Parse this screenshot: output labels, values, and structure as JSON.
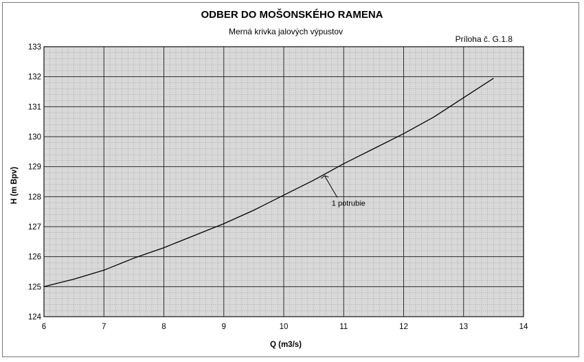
{
  "chart_data": {
    "type": "line",
    "title": "ODBER DO MOŠONSKÉHO RAMENA",
    "subtitle": "Merná krivka jalových výpustov",
    "annex_label": "Príloha č. G.1.8",
    "xlabel": "Q (m3/s)",
    "ylabel": "H (m Bpv)",
    "xlim": [
      6,
      14
    ],
    "ylim": [
      124,
      133
    ],
    "x_ticks": [
      "6",
      "7",
      "8",
      "9",
      "10",
      "11",
      "12",
      "13",
      "14"
    ],
    "y_ticks": [
      "124",
      "125",
      "126",
      "127",
      "128",
      "129",
      "130",
      "131",
      "132",
      "133"
    ],
    "grid": true,
    "series": [
      {
        "name": "1 potrubie",
        "x": [
          6.0,
          6.5,
          7.0,
          7.5,
          8.0,
          8.5,
          9.0,
          9.5,
          10.0,
          10.5,
          11.0,
          11.5,
          12.0,
          12.5,
          13.0,
          13.5
        ],
        "y": [
          125.0,
          125.25,
          125.55,
          125.95,
          126.3,
          126.7,
          127.1,
          127.55,
          128.05,
          128.55,
          129.1,
          129.6,
          130.1,
          130.65,
          131.3,
          131.95
        ]
      }
    ],
    "annotations": [
      {
        "text": "1 potrubie",
        "x": 10.8,
        "y": 127.7,
        "arrow_to": [
          10.68,
          128.7
        ]
      }
    ]
  }
}
